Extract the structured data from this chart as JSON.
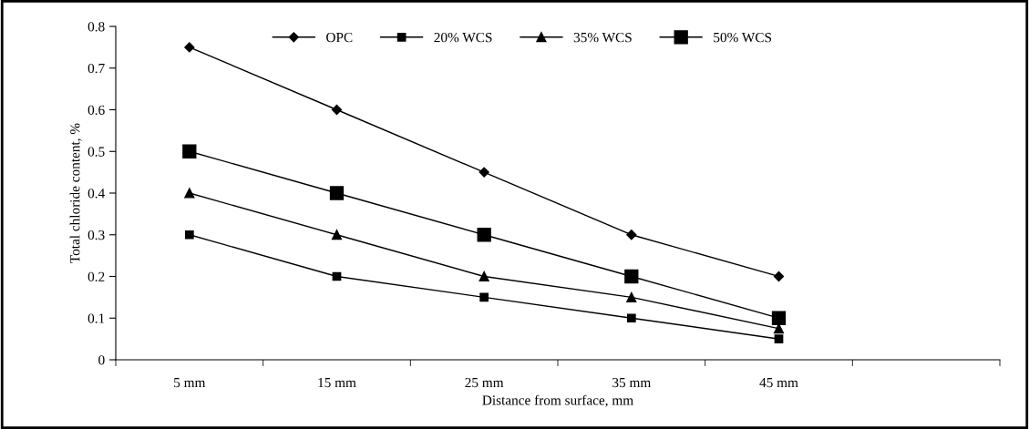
{
  "chart_data": {
    "type": "line",
    "xlabel": "Distance from surface, mm",
    "ylabel": "Total chloride content, %",
    "categories": [
      "5 mm",
      "15 mm",
      "25 mm",
      "35 mm",
      "45 mm",
      null
    ],
    "series": [
      {
        "name": "OPC",
        "color": "#000000",
        "marker": "diamond",
        "values": [
          0.75,
          0.6,
          0.45,
          0.3,
          0.2,
          null
        ]
      },
      {
        "name": "20% WCS",
        "color": "#000000",
        "marker": "square",
        "values": [
          0.3,
          0.2,
          0.15,
          0.1,
          0.05,
          null
        ]
      },
      {
        "name": "35% WCS",
        "color": "#000000",
        "marker": "triangle",
        "values": [
          0.4,
          0.3,
          0.2,
          0.15,
          0.075,
          null
        ]
      },
      {
        "name": "50% WCS",
        "color": "#000000",
        "marker": "square",
        "values": [
          0.5,
          0.4,
          0.3,
          0.2,
          0.1,
          null
        ]
      }
    ],
    "ylim": [
      0,
      0.8
    ],
    "yticks": [
      0,
      0.1,
      0.2,
      0.3,
      0.4,
      0.5,
      0.6,
      0.7,
      0.8
    ],
    "grid": false,
    "legend": "top",
    "line_style": "solid"
  }
}
